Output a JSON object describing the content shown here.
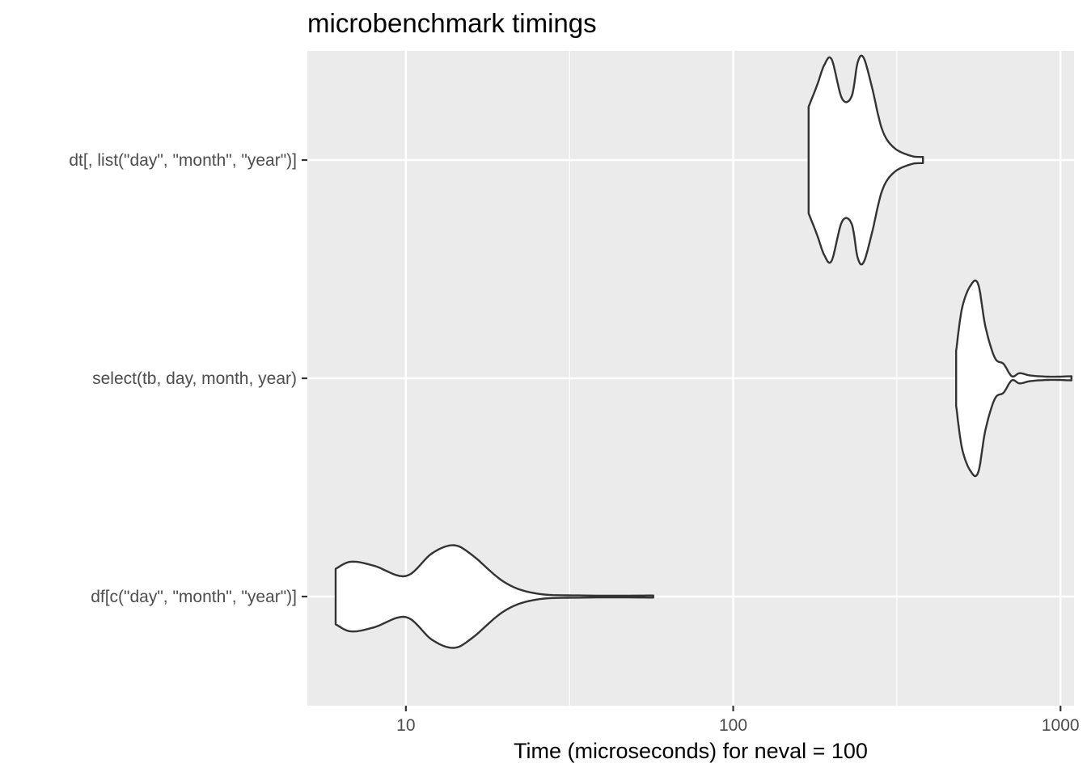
{
  "chart_data": {
    "type": "violin",
    "orientation": "horizontal",
    "title": "microbenchmark timings",
    "xlabel": "Time (microseconds) for neval = 100",
    "ylabel": "",
    "x_scale": "log10",
    "xlim": [
      5,
      1100
    ],
    "x_ticks": [
      10,
      100,
      1000
    ],
    "x_tick_labels": [
      "10",
      "100",
      "1000"
    ],
    "grid": true,
    "background": "#ebebeb",
    "series_colors": {
      "fill": "#ffffff",
      "stroke": "#333333"
    },
    "categories": [
      "dt[, list(\"day\", \"month\", \"year\")]",
      "select(tb, day, month, year)",
      "df[c(\"day\", \"month\", \"year\")]"
    ],
    "series": [
      {
        "category": "dt[, list(\"day\", \"month\", \"year\")]",
        "profile": [
          [
            170,
            0.52
          ],
          [
            180,
            0.72
          ],
          [
            190,
            0.93
          ],
          [
            200,
            0.98
          ],
          [
            215,
            0.6
          ],
          [
            230,
            0.62
          ],
          [
            240,
            0.95
          ],
          [
            250,
            1.0
          ],
          [
            265,
            0.72
          ],
          [
            285,
            0.3
          ],
          [
            310,
            0.12
          ],
          [
            350,
            0.04
          ],
          [
            380,
            0.03
          ]
        ]
      },
      {
        "category": "select(tb, day, month, year)",
        "profile": [
          [
            480,
            0.27
          ],
          [
            500,
            0.68
          ],
          [
            530,
            0.9
          ],
          [
            560,
            0.92
          ],
          [
            590,
            0.5
          ],
          [
            630,
            0.2
          ],
          [
            670,
            0.14
          ],
          [
            710,
            0.02
          ],
          [
            750,
            0.05
          ],
          [
            800,
            0.03
          ],
          [
            860,
            0.02
          ],
          [
            950,
            0.015
          ],
          [
            1080,
            0.02
          ]
        ]
      },
      {
        "category": "df[c(\"day\", \"month\", \"year\")]",
        "profile": [
          [
            6.1,
            0.27
          ],
          [
            6.8,
            0.34
          ],
          [
            8,
            0.3
          ],
          [
            10,
            0.2
          ],
          [
            12,
            0.42
          ],
          [
            14,
            0.5
          ],
          [
            16,
            0.4
          ],
          [
            20,
            0.14
          ],
          [
            25,
            0.03
          ],
          [
            35,
            0.01
          ],
          [
            57,
            0.01
          ]
        ]
      }
    ]
  }
}
